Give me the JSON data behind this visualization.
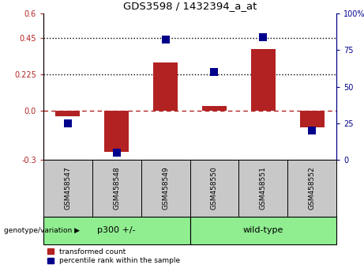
{
  "title": "GDS3598 / 1432394_a_at",
  "samples": [
    "GSM458547",
    "GSM458548",
    "GSM458549",
    "GSM458550",
    "GSM458551",
    "GSM458552"
  ],
  "transformed_count": [
    -0.03,
    -0.25,
    0.3,
    0.03,
    0.38,
    -0.1
  ],
  "percentile_rank": [
    25,
    5,
    82,
    60,
    84,
    20
  ],
  "ylim_left": [
    -0.3,
    0.6
  ],
  "ylim_right": [
    0,
    100
  ],
  "yticks_left": [
    -0.3,
    0.0,
    0.225,
    0.45,
    0.6
  ],
  "yticks_right": [
    0,
    25,
    50,
    75,
    100
  ],
  "hlines_dotted": [
    0.225,
    0.45
  ],
  "hline_dashed": 0.0,
  "bar_color": "#B22222",
  "dot_color": "#00008B",
  "group1_label": "p300 +/-",
  "group2_label": "wild-type",
  "group_color": "#90EE90",
  "xlabel_genotype": "genotype/variation",
  "legend_red": "transformed count",
  "legend_blue": "percentile rank within the sample",
  "bar_width": 0.5,
  "tick_label_bg": "#C8C8C8",
  "plot_bg": "#FFFFFF",
  "fig_bg": "#FFFFFF",
  "marker_size": 55
}
